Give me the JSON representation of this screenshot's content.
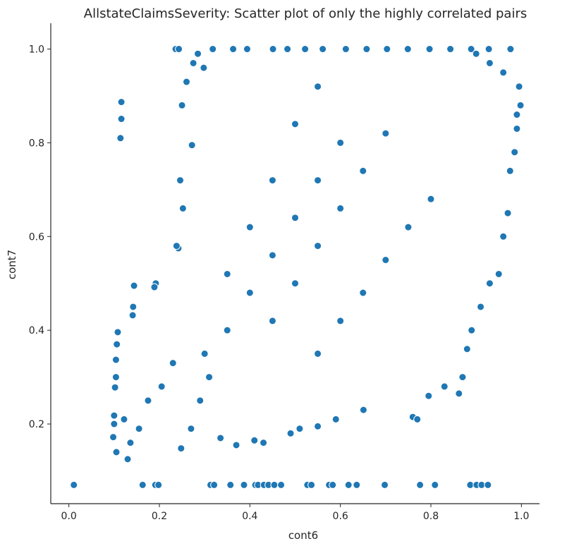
{
  "chart_data": {
    "type": "scatter",
    "title": "AllstateClaimsSeverity: Scatter plot of only the highly correlated pairs",
    "xlabel": "cont6",
    "ylabel": "cont7",
    "xlim": [
      -0.04,
      1.04
    ],
    "ylim": [
      0.03,
      1.055
    ],
    "xticks": [
      0.0,
      0.2,
      0.4,
      0.6,
      0.8,
      1.0
    ],
    "xtick_labels": [
      "0.0",
      "0.2",
      "0.4",
      "0.6",
      "0.8",
      "1.0"
    ],
    "yticks": [
      0.2,
      0.4,
      0.6,
      0.8,
      1.0
    ],
    "ytick_labels": [
      "0.2",
      "0.4",
      "0.6",
      "0.8",
      "1.0"
    ],
    "grid": false,
    "legend": "none",
    "marker_color": "#1f77b4",
    "marker_edge_color": "#ffffff",
    "series": [
      {
        "points": [
          [
            0.011,
            0.07
          ],
          [
            0.163,
            0.07
          ],
          [
            0.191,
            0.07
          ],
          [
            0.198,
            0.07
          ],
          [
            0.313,
            0.07
          ],
          [
            0.321,
            0.07
          ],
          [
            0.357,
            0.07
          ],
          [
            0.387,
            0.07
          ],
          [
            0.412,
            0.07
          ],
          [
            0.418,
            0.07
          ],
          [
            0.431,
            0.07
          ],
          [
            0.441,
            0.07
          ],
          [
            0.454,
            0.07
          ],
          [
            0.469,
            0.07
          ],
          [
            0.527,
            0.07
          ],
          [
            0.536,
            0.07
          ],
          [
            0.575,
            0.07
          ],
          [
            0.583,
            0.07
          ],
          [
            0.618,
            0.07
          ],
          [
            0.636,
            0.07
          ],
          [
            0.698,
            0.07
          ],
          [
            0.776,
            0.07
          ],
          [
            0.809,
            0.07
          ],
          [
            0.887,
            0.07
          ],
          [
            0.901,
            0.07
          ],
          [
            0.912,
            0.07
          ],
          [
            0.926,
            0.07
          ],
          [
            0.116,
            0.887
          ],
          [
            0.116,
            0.851
          ],
          [
            0.114,
            0.81
          ],
          [
            0.236,
            1.0
          ],
          [
            0.243,
            1.0
          ],
          [
            0.285,
            0.99
          ],
          [
            0.318,
            1.0
          ],
          [
            0.363,
            1.0
          ],
          [
            0.394,
            1.0
          ],
          [
            0.451,
            1.0
          ],
          [
            0.483,
            1.0
          ],
          [
            0.522,
            1.0
          ],
          [
            0.561,
            1.0
          ],
          [
            0.612,
            1.0
          ],
          [
            0.658,
            1.0
          ],
          [
            0.703,
            1.0
          ],
          [
            0.749,
            1.0
          ],
          [
            0.797,
            1.0
          ],
          [
            0.843,
            1.0
          ],
          [
            0.889,
            1.0
          ],
          [
            0.928,
            1.0
          ],
          [
            0.976,
            1.0
          ],
          [
            0.246,
            0.72
          ],
          [
            0.252,
            0.66
          ],
          [
            0.242,
            0.575
          ],
          [
            0.238,
            0.58
          ],
          [
            0.272,
            0.795
          ],
          [
            0.25,
            0.88
          ],
          [
            0.26,
            0.93
          ],
          [
            0.275,
            0.97
          ],
          [
            0.298,
            0.96
          ],
          [
            0.1,
            0.218
          ],
          [
            0.1,
            0.2
          ],
          [
            0.098,
            0.172
          ],
          [
            0.105,
            0.14
          ],
          [
            0.106,
            0.37
          ],
          [
            0.108,
            0.396
          ],
          [
            0.104,
            0.3
          ],
          [
            0.102,
            0.278
          ],
          [
            0.104,
            0.337
          ],
          [
            0.13,
            0.125
          ],
          [
            0.136,
            0.16
          ],
          [
            0.144,
            0.495
          ],
          [
            0.142,
            0.45
          ],
          [
            0.141,
            0.432
          ],
          [
            0.192,
            0.5
          ],
          [
            0.189,
            0.492
          ],
          [
            0.122,
            0.21
          ],
          [
            0.155,
            0.19
          ],
          [
            0.175,
            0.25
          ],
          [
            0.205,
            0.28
          ],
          [
            0.23,
            0.33
          ],
          [
            0.248,
            0.148
          ],
          [
            0.27,
            0.19
          ],
          [
            0.29,
            0.25
          ],
          [
            0.31,
            0.3
          ],
          [
            0.335,
            0.17
          ],
          [
            0.37,
            0.155
          ],
          [
            0.41,
            0.165
          ],
          [
            0.43,
            0.16
          ],
          [
            0.49,
            0.18
          ],
          [
            0.51,
            0.19
          ],
          [
            0.55,
            0.195
          ],
          [
            0.59,
            0.21
          ],
          [
            0.651,
            0.23
          ],
          [
            0.76,
            0.215
          ],
          [
            0.77,
            0.21
          ],
          [
            0.795,
            0.26
          ],
          [
            0.83,
            0.28
          ],
          [
            0.862,
            0.265
          ],
          [
            0.87,
            0.3
          ],
          [
            0.88,
            0.36
          ],
          [
            0.89,
            0.4
          ],
          [
            0.91,
            0.45
          ],
          [
            0.93,
            0.5
          ],
          [
            0.95,
            0.52
          ],
          [
            0.96,
            0.6
          ],
          [
            0.97,
            0.65
          ],
          [
            0.975,
            0.74
          ],
          [
            0.985,
            0.78
          ],
          [
            0.99,
            0.86
          ],
          [
            0.995,
            0.92
          ],
          [
            0.998,
            0.88
          ],
          [
            0.99,
            0.83
          ],
          [
            0.96,
            0.95
          ],
          [
            0.93,
            0.97
          ],
          [
            0.9,
            0.99
          ],
          [
            0.55,
            0.35
          ],
          [
            0.6,
            0.42
          ],
          [
            0.65,
            0.48
          ],
          [
            0.7,
            0.55
          ],
          [
            0.75,
            0.62
          ],
          [
            0.8,
            0.68
          ],
          [
            0.45,
            0.42
          ],
          [
            0.5,
            0.5
          ],
          [
            0.55,
            0.58
          ],
          [
            0.6,
            0.66
          ],
          [
            0.65,
            0.74
          ],
          [
            0.7,
            0.82
          ],
          [
            0.35,
            0.4
          ],
          [
            0.4,
            0.48
          ],
          [
            0.45,
            0.56
          ],
          [
            0.5,
            0.64
          ],
          [
            0.55,
            0.72
          ],
          [
            0.6,
            0.8
          ],
          [
            0.3,
            0.35
          ],
          [
            0.35,
            0.52
          ],
          [
            0.4,
            0.62
          ],
          [
            0.45,
            0.72
          ],
          [
            0.5,
            0.84
          ],
          [
            0.55,
            0.92
          ]
        ]
      }
    ]
  }
}
